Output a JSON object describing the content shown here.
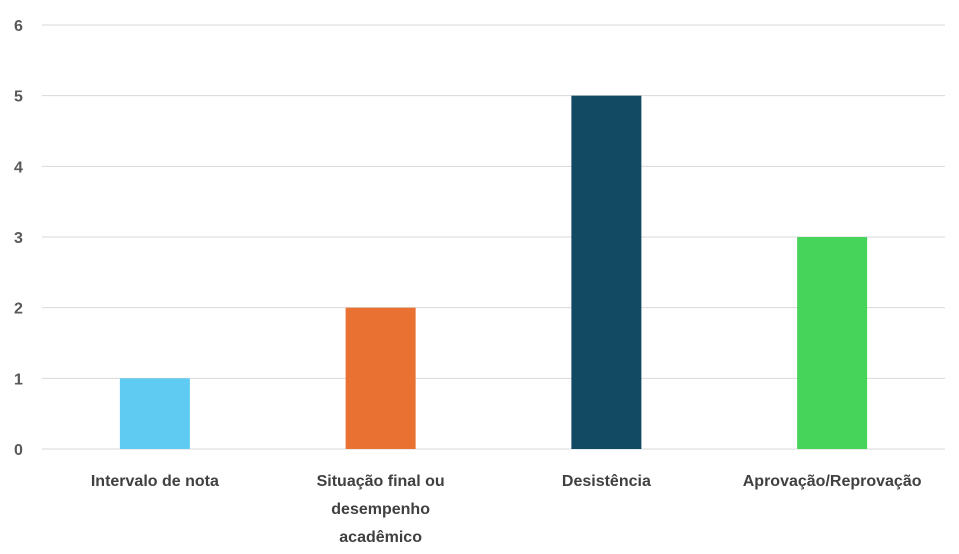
{
  "chart_data": {
    "type": "bar",
    "categories": [
      [
        "Intervalo de nota"
      ],
      [
        "Situação final ou",
        "desempenho",
        "acadêmico"
      ],
      [
        "Desistência"
      ],
      [
        "Aprovação/Reprovação"
      ]
    ],
    "values": [
      1,
      2,
      5,
      3
    ],
    "colors": [
      "#5fcbf3",
      "#e97132",
      "#124a63",
      "#47d45a"
    ],
    "y_ticks": [
      0,
      1,
      2,
      3,
      4,
      5,
      6
    ],
    "ylim": [
      0,
      6
    ],
    "grid": true,
    "legend": "none",
    "title": "",
    "xlabel": "",
    "ylabel": ""
  }
}
